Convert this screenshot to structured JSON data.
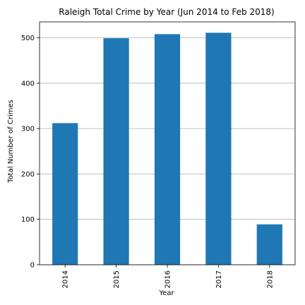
{
  "chart_data": {
    "type": "bar",
    "title": "Raleigh Total Crime by Year (Jun 2014 to Feb 2018)",
    "xlabel": "Year",
    "ylabel": "Total Number of Crimes",
    "categories": [
      "2014",
      "2015",
      "2016",
      "2017",
      "2018"
    ],
    "values": [
      312,
      499,
      508,
      511,
      89
    ],
    "ylim": [
      0,
      535
    ],
    "yticks": [
      0,
      100,
      200,
      300,
      400,
      500
    ],
    "grid": "horizontal",
    "bar_color": "#1f77b4",
    "grid_color": "#b0b0b0"
  }
}
